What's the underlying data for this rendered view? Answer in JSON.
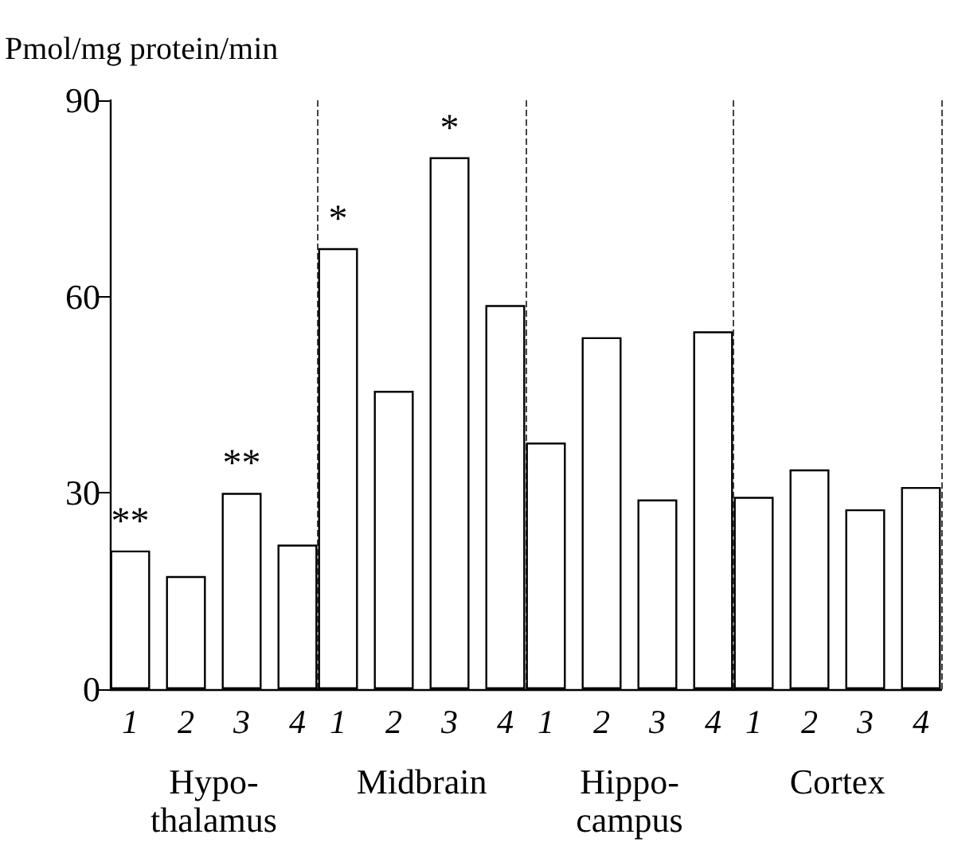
{
  "chart_data": {
    "type": "bar",
    "ylabel": "Pmol/mg protein/min",
    "categories": [
      "Hypo-\nthalamus",
      "Midbrain",
      "Hippo-\ncampus",
      "Cortex"
    ],
    "series": [
      {
        "name": "1",
        "color": "#ffffff",
        "values": [
          21.2,
          67.4,
          37.7,
          29.4
        ],
        "value_labels": [
          "**",
          "*",
          null,
          null
        ]
      },
      {
        "name": "2",
        "color": "#ffffff",
        "values": [
          17.3,
          45.6,
          53.8,
          33.6
        ]
      },
      {
        "name": "3",
        "color": "#ffffff",
        "values": [
          30.0,
          81.3,
          29.0,
          27.5
        ],
        "value_labels": [
          "**",
          "*",
          null,
          null
        ]
      },
      {
        "name": "4",
        "color": "#ffffff",
        "values": [
          22.1,
          58.7,
          54.7,
          30.9
        ]
      }
    ],
    "ylim": [
      0,
      90
    ],
    "yticks": [
      0,
      30,
      60,
      90
    ],
    "grid": "x",
    "legend": false
  }
}
